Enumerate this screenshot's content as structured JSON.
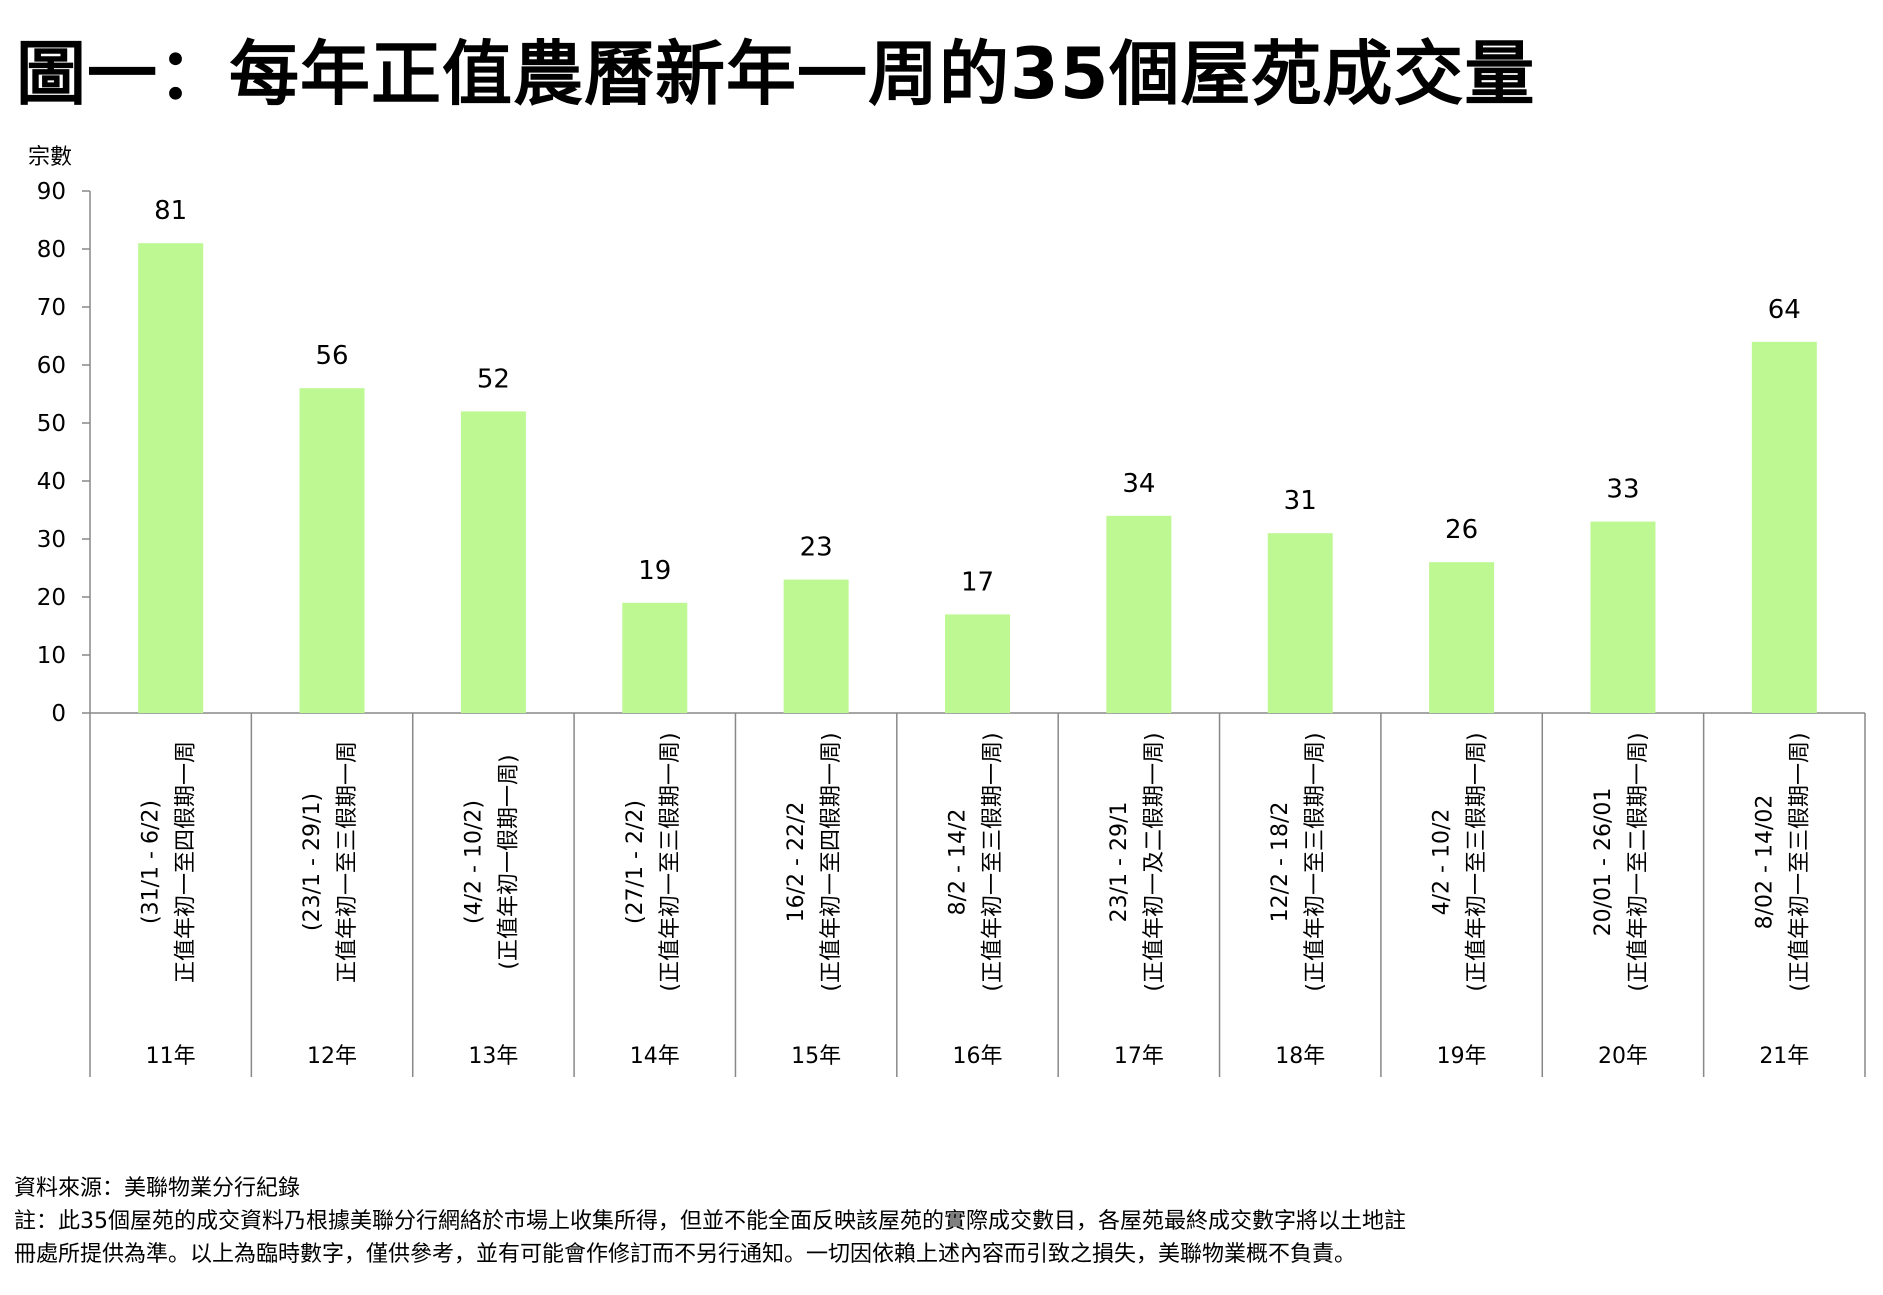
{
  "title": "圖一：每年正值農曆新年一周的35個屋苑成交量",
  "chart_data": {
    "type": "bar",
    "title": "圖一：每年正值農曆新年一周的35個屋苑成交量",
    "ylabel": "宗數",
    "xlabel": "",
    "ylim": [
      0,
      90
    ],
    "yticks": [
      0,
      10,
      20,
      30,
      40,
      50,
      60,
      70,
      80,
      90
    ],
    "grid": false,
    "bar_color": "#bdf893",
    "categories": [
      "11年",
      "12年",
      "13年",
      "14年",
      "15年",
      "16年",
      "17年",
      "18年",
      "19年",
      "20年",
      "21年"
    ],
    "sublabels": [
      [
        "(31/1 - 6/2)",
        "正值年初一至四假期一周"
      ],
      [
        "(23/1 - 29/1)",
        "正值年初一至三假期一周"
      ],
      [
        "(4/2 - 10/2)",
        "(正值年初一假期一周)"
      ],
      [
        "(27/1 - 2/2)",
        "(正值年初一至三假期一周)"
      ],
      [
        "16/2 - 22/2",
        "(正值年初一至四假期一周)"
      ],
      [
        "8/2 - 14/2",
        "(正值年初一至三假期一周)"
      ],
      [
        "23/1 - 29/1",
        "(正值年初一及二假期一周)"
      ],
      [
        "12/2 - 18/2",
        "(正值年初一至三假期一周)"
      ],
      [
        "4/2 - 10/2",
        "(正值年初一至三假期一周)"
      ],
      [
        "20/01 - 26/01",
        "(正值年初一至二假期一周)"
      ],
      [
        "8/02 - 14/02",
        "(正值年初一至三假期一周)"
      ]
    ],
    "values": [
      81,
      56,
      52,
      19,
      23,
      17,
      34,
      31,
      26,
      33,
      64
    ]
  },
  "notes": {
    "source": "資料來源：美聯物業分行紀錄",
    "line1": "註：此35個屋苑的成交資料乃根據美聯分行網絡於市場上收集所得，但並不能全面反映該屋苑的實際成交數目，各屋苑最終成交數字將以土地註",
    "line2": "冊處所提供為準。以上為臨時數字，僅供參考，並有可能會作修訂而不另行通知。一切因依賴上述內容而引致之損失，美聯物業概不負責。"
  }
}
